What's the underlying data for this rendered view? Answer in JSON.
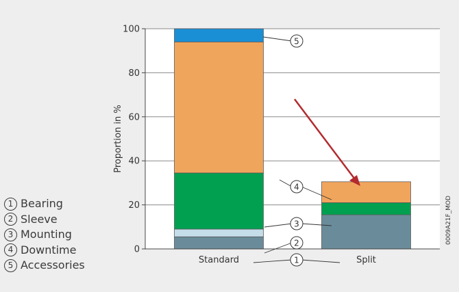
{
  "chart_data": {
    "type": "bar",
    "stacked": true,
    "categories": [
      "Standard",
      "Split"
    ],
    "series": [
      {
        "name": "Bearing",
        "values": [
          5.5,
          15.5
        ],
        "color": "#6a8c9a"
      },
      {
        "name": "Sleeve",
        "values": [
          3.5,
          0
        ],
        "color": "#c5dce9"
      },
      {
        "name": "Mounting",
        "values": [
          25.5,
          5.5
        ],
        "color": "#00a050"
      },
      {
        "name": "Downtime",
        "values": [
          59.5,
          9.5
        ],
        "color": "#f0a55c"
      },
      {
        "name": "Accessories",
        "values": [
          6.0,
          0
        ],
        "color": "#1a8fd6"
      }
    ],
    "ylabel": "Proportion in %",
    "ylim": [
      0,
      100
    ],
    "yticks": [
      "0",
      "20",
      "40",
      "60",
      "80",
      "100"
    ],
    "grid": true,
    "legend_position": "bottom-left",
    "annotations": {
      "callout_numbers": [
        "1",
        "2",
        "3",
        "4",
        "5"
      ],
      "arrow_color": "#b22a2e",
      "image_code": "0009A21F_MOD"
    }
  },
  "legend": [
    {
      "num": "1",
      "label": "Bearing"
    },
    {
      "num": "2",
      "label": "Sleeve"
    },
    {
      "num": "3",
      "label": "Mounting"
    },
    {
      "num": "4",
      "label": "Downtime"
    },
    {
      "num": "5",
      "label": "Accessories"
    }
  ]
}
